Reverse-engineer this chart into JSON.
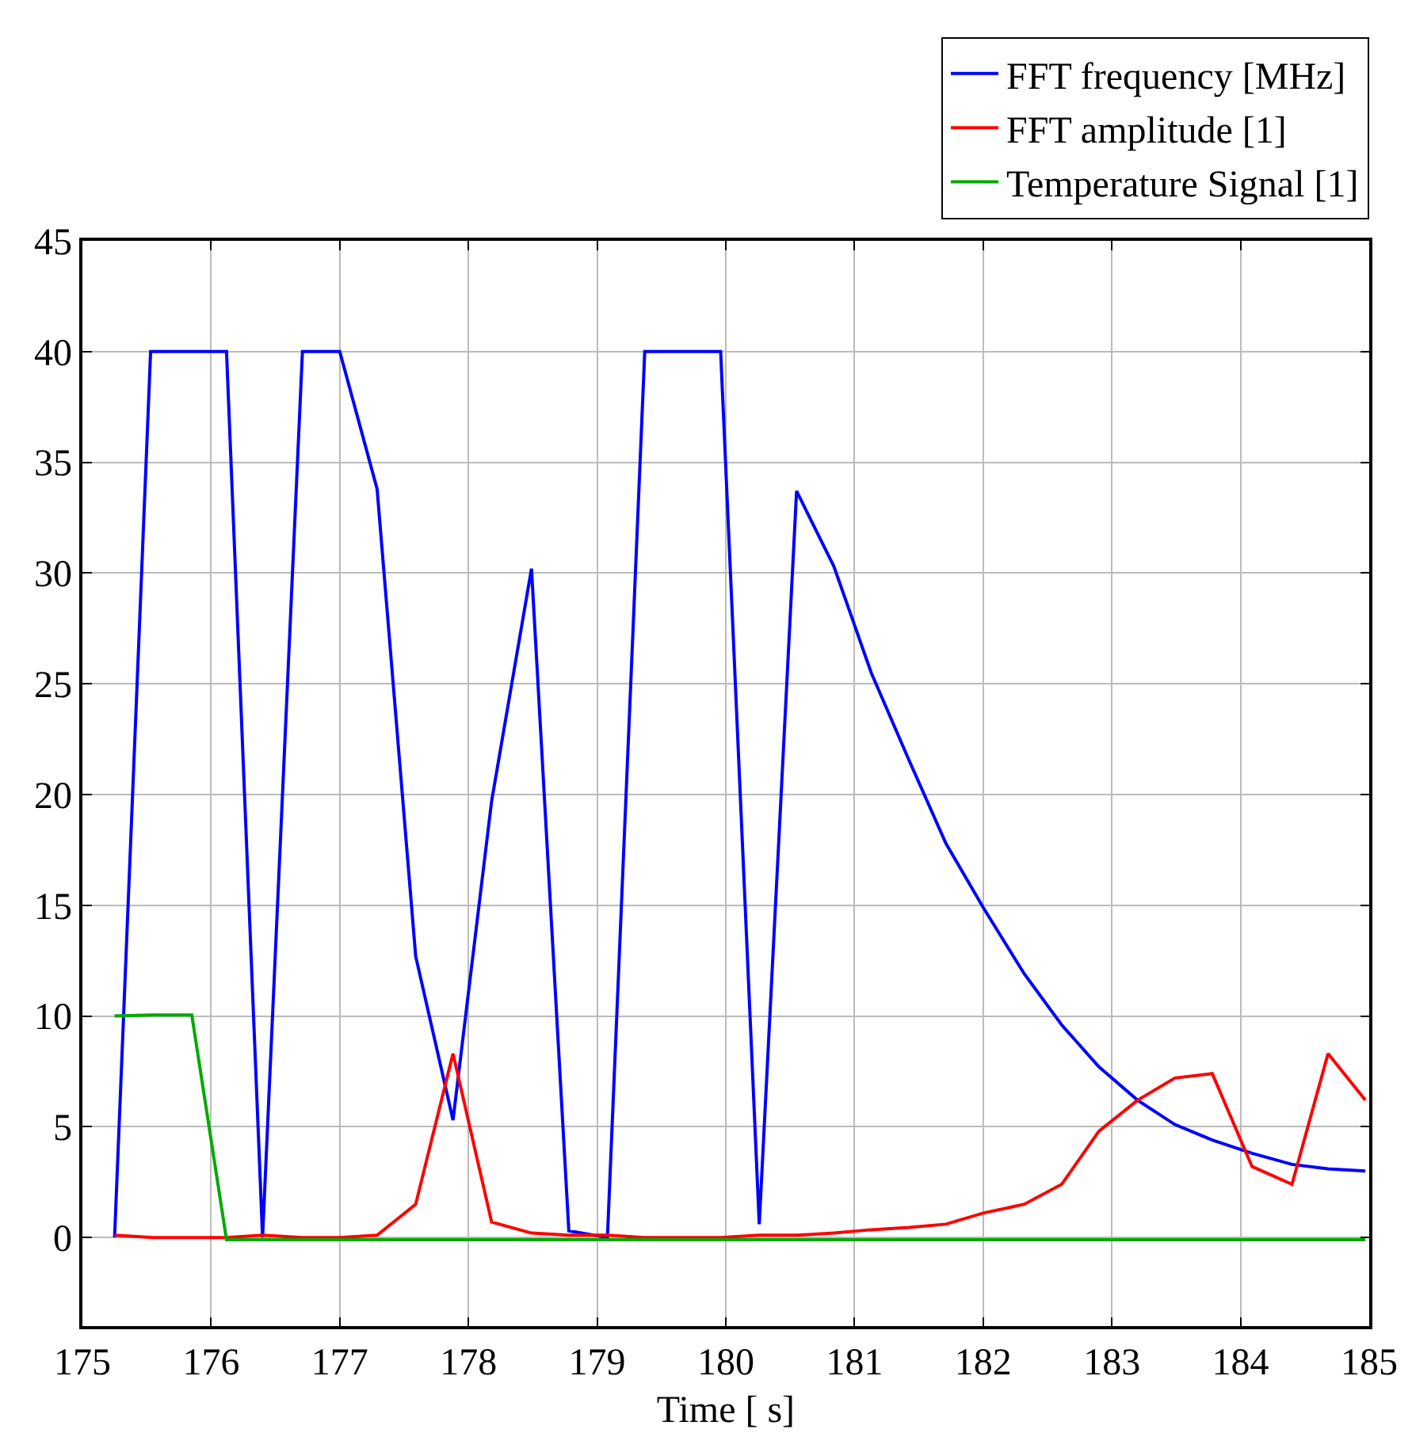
{
  "chart_data": {
    "type": "line",
    "xlabel": "Time [ s]",
    "xlim": [
      175,
      185
    ],
    "xticks": [
      175,
      176,
      177,
      178,
      179,
      180,
      181,
      182,
      183,
      184,
      185
    ],
    "ylim": [
      -4,
      45
    ],
    "yticks": [
      0,
      5,
      10,
      15,
      20,
      25,
      30,
      35,
      40,
      45
    ],
    "grid": true,
    "legend": "top right",
    "marker": "none",
    "line_style": "solid",
    "series": [
      {
        "name": "FFT frequency [MHz]",
        "color": "#0000ff",
        "x": [
          175.25,
          175.53,
          176.12,
          176.4,
          176.71,
          177.0,
          177.29,
          177.59,
          177.88,
          178.18,
          178.49,
          178.78,
          179.08,
          179.37,
          179.96,
          180.26,
          180.55,
          180.84,
          181.13,
          181.42,
          181.71,
          182.0,
          182.32,
          182.61,
          182.9,
          183.2,
          183.49,
          183.78,
          184.09,
          184.4,
          184.68,
          184.97
        ],
        "values": [
          0,
          40,
          40,
          0,
          40,
          40,
          33.8,
          12.7,
          5.3,
          19.7,
          30.2,
          0.3,
          0,
          40,
          40,
          0.6,
          33.7,
          30.3,
          25.5,
          21.6,
          17.8,
          14.9,
          11.9,
          9.6,
          7.7,
          6.2,
          5.1,
          4.4,
          3.8,
          3.3,
          3.1,
          3.0
        ]
      },
      {
        "name": "FFT amplitude [1]",
        "color": "#ff0000",
        "x": [
          175.25,
          175.55,
          175.85,
          176.12,
          176.4,
          176.71,
          177.0,
          177.29,
          177.59,
          177.88,
          178.18,
          178.49,
          178.78,
          179.08,
          179.37,
          179.67,
          179.96,
          180.26,
          180.55,
          180.84,
          181.13,
          181.42,
          181.71,
          182.0,
          182.32,
          182.61,
          182.9,
          183.2,
          183.49,
          183.78,
          184.09,
          184.4,
          184.68,
          184.97
        ],
        "values": [
          0.1,
          0,
          0,
          0,
          0.1,
          0,
          0,
          0.1,
          1.5,
          8.3,
          0.7,
          0.2,
          0.1,
          0.1,
          0,
          0,
          0,
          0.1,
          0.1,
          0.2,
          0.35,
          0.45,
          0.6,
          1.1,
          1.5,
          2.4,
          4.8,
          6.2,
          7.2,
          7.4,
          3.2,
          2.4,
          8.3,
          6.2
        ]
      },
      {
        "name": "Temperature Signal [1]",
        "color": "#00aa00",
        "x": [
          175.25,
          175.55,
          175.85,
          176.12,
          184.97
        ],
        "values": [
          10,
          10.05,
          10.05,
          -0.1,
          -0.1
        ]
      }
    ]
  }
}
